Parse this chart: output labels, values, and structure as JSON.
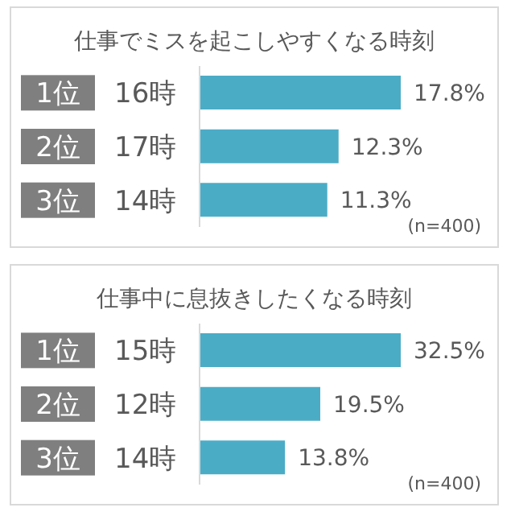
{
  "chart_data": [
    {
      "type": "bar",
      "orientation": "horizontal",
      "title": "仕事でミスを起こしやすくなる時刻",
      "categories": [
        "1位 16時",
        "2位 17時",
        "3位 14時"
      ],
      "values": [
        17.8,
        12.3,
        11.3
      ],
      "value_labels": [
        "17.8%",
        "12.3%",
        "11.3%"
      ],
      "color": "#4bacc6",
      "annotations": [
        "(n=400)"
      ]
    },
    {
      "type": "bar",
      "orientation": "horizontal",
      "title": "仕事中に息抜きしたくなる時刻",
      "categories": [
        "1位 15時",
        "2位 12時",
        "3位 14時"
      ],
      "values": [
        32.5,
        19.5,
        13.8
      ],
      "value_labels": [
        "32.5%",
        "19.5%",
        "13.8%"
      ],
      "color": "#4bacc6",
      "annotations": [
        "(n=400)"
      ]
    }
  ]
}
